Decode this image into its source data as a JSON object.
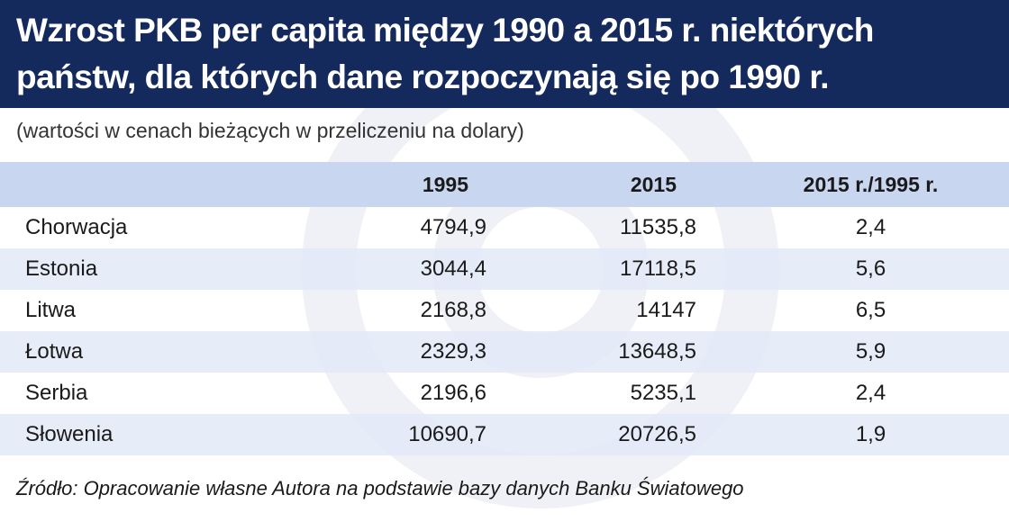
{
  "title_line1": "Wzrost PKB per capita między 1990 a 2015 r. niektórych",
  "title_line2": "państw, dla których dane rozpoczynają się po 1990 r.",
  "subtitle": "(wartości w cenach bieżących w przeliczeniu na dolary)",
  "source": "Źródło: Opracowanie własne Autora na podstawie bazy danych Banku Światowego",
  "colors": {
    "header_bg": "#152a5c",
    "table_header_bg": "#c9d6ef",
    "row_alt_bg": "#e2e9f7"
  },
  "chart_data": {
    "type": "table",
    "columns": [
      "",
      "1995",
      "2015",
      "2015 r./1995 r."
    ],
    "rows": [
      {
        "country": "Chorwacja",
        "v1995": "4794,9",
        "v2015": "11535,8",
        "ratio": "2,4"
      },
      {
        "country": "Estonia",
        "v1995": "3044,4",
        "v2015": "17118,5",
        "ratio": "5,6"
      },
      {
        "country": "Litwa",
        "v1995": "2168,8",
        "v2015": "14147",
        "ratio": "6,5"
      },
      {
        "country": "Łotwa",
        "v1995": "2329,3",
        "v2015": "13648,5",
        "ratio": "5,9"
      },
      {
        "country": "Serbia",
        "v1995": "2196,6",
        "v2015": "5235,1",
        "ratio": "2,4"
      },
      {
        "country": "Słowenia",
        "v1995": "10690,7",
        "v2015": "20726,5",
        "ratio": "1,9"
      }
    ]
  }
}
